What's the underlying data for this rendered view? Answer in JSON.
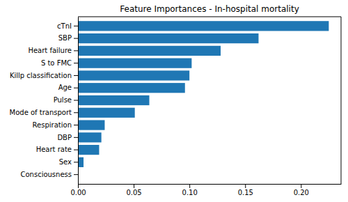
{
  "chart_data": {
    "type": "bar",
    "orientation": "horizontal",
    "title": "Feature Importances - In-hospital mortality",
    "categories": [
      "cTnI",
      "SBP",
      "Heart failure",
      "S to FMC",
      "Killp classification",
      "Age",
      "Pulse",
      "Mode of transport",
      "Respiration",
      "DBP",
      "Heart rate",
      "Sex",
      "Consciousness"
    ],
    "values": [
      0.225,
      0.162,
      0.128,
      0.102,
      0.1,
      0.096,
      0.064,
      0.051,
      0.024,
      0.021,
      0.019,
      0.005,
      0.0
    ],
    "color": "#1f77b4",
    "xlim": [
      0,
      0.236
    ],
    "xticks": [
      {
        "value": 0,
        "label": "0.00"
      },
      {
        "value": 0.05,
        "label": "0.05"
      },
      {
        "value": 0.1,
        "label": "0.10"
      },
      {
        "value": 0.15,
        "label": "0.15"
      },
      {
        "value": 0.2,
        "label": "0.20"
      }
    ],
    "grid": false
  }
}
